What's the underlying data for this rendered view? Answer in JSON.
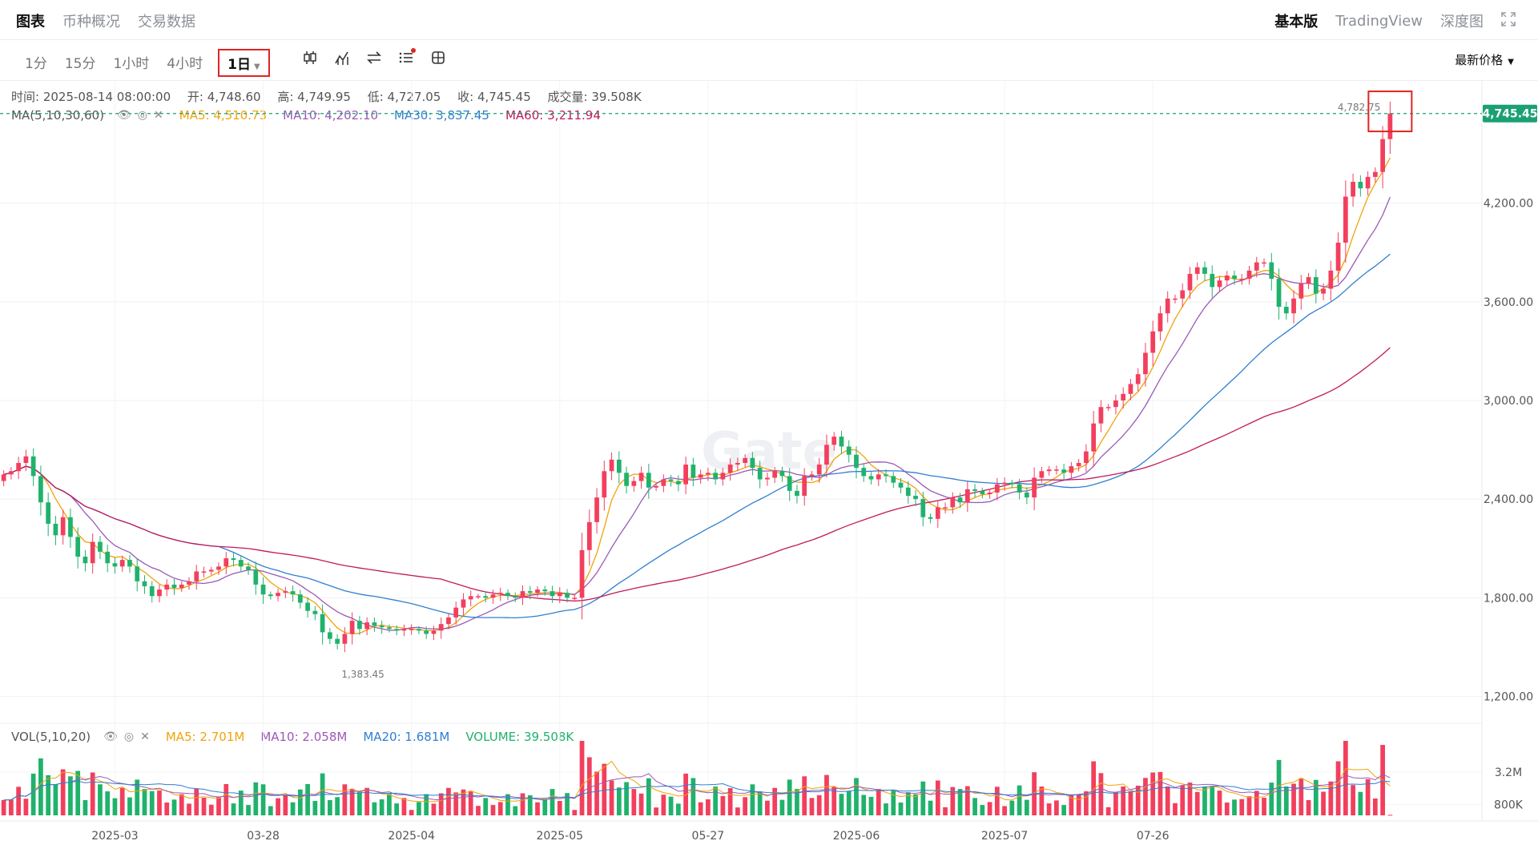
{
  "tabs": [
    {
      "label": "图表",
      "active": true
    },
    {
      "label": "币种概况",
      "active": false
    },
    {
      "label": "交易数据",
      "active": false
    }
  ],
  "top_right": {
    "basic": "基本版",
    "tradingview": "TradingView",
    "depth": "深度图",
    "expand_icon": "expand-icon"
  },
  "intervals": [
    "1分",
    "15分",
    "1小时",
    "4小时"
  ],
  "selected_interval": "1日",
  "tools": [
    "candle-type-icon",
    "indicator-icon",
    "compare-icon",
    "settings-list-icon",
    "layout-icon"
  ],
  "price_selector": "最新价格",
  "ohlc": {
    "time": "时间: 2025-08-14 08:00:00",
    "open": "开: 4,748.60",
    "high": "高: 4,749.95",
    "low": "低: 4,727.05",
    "close": "收: 4,745.45",
    "volume": "成交量: 39.508K"
  },
  "ma_legend": {
    "name": "MA(5,10,30,60)",
    "ma5": "MA5: 4,510.73",
    "ma10": "MA10: 4,202.10",
    "ma30": "MA30: 3,837.45",
    "ma60": "MA60: 3,211.94"
  },
  "vol_legend": {
    "name": "VOL(5,10,20)",
    "ma5": "MA5: 2.701M",
    "ma10": "MA10: 2.058M",
    "ma20": "MA20: 1.681M",
    "volume": "VOLUME: 39.508K"
  },
  "colors": {
    "up": "#f23f5d",
    "down": "#20b26c",
    "ma5": "#f0a30a",
    "ma10": "#9b59b6",
    "ma30": "#2f7fd0",
    "ma60": "#c2185b",
    "accent": "#e02424"
  },
  "chart_data": {
    "type": "candlestick",
    "price_axis": {
      "ticks": [
        "4,200.00",
        "3,600.00",
        "3,000.00",
        "2,400.00",
        "1,800.00",
        "1,200.00"
      ],
      "min": 1100,
      "max": 4900
    },
    "volume_axis": {
      "ticks": [
        "3.2M",
        "800K"
      ]
    },
    "date_ticks": [
      "2025-03",
      "03-28",
      "2025-04",
      "2025-05",
      "05-27",
      "2025-06",
      "2025-07",
      "07-26"
    ],
    "last_price": "4,745.45",
    "high_marker": "4,782.75",
    "low_marker": "1,383.45",
    "watermark": "Gate",
    "closes": [
      2550,
      2570,
      2620,
      2660,
      2540,
      2380,
      2250,
      2180,
      2290,
      2170,
      2050,
      2010,
      2140,
      2080,
      2010,
      1990,
      2030,
      1990,
      1900,
      1870,
      1810,
      1850,
      1880,
      1860,
      1880,
      1900,
      1960,
      1960,
      1970,
      1990,
      2040,
      2030,
      1990,
      1970,
      1880,
      1820,
      1810,
      1830,
      1840,
      1820,
      1770,
      1720,
      1700,
      1590,
      1550,
      1520,
      1580,
      1660,
      1610,
      1650,
      1630,
      1620,
      1610,
      1600,
      1610,
      1610,
      1600,
      1580,
      1600,
      1640,
      1680,
      1740,
      1790,
      1810,
      1810,
      1800,
      1820,
      1830,
      1810,
      1800,
      1840,
      1830,
      1850,
      1840,
      1810,
      1830,
      1800,
      1800,
      2090,
      2260,
      2410,
      2570,
      2640,
      2560,
      2480,
      2510,
      2560,
      2470,
      2480,
      2520,
      2510,
      2490,
      2610,
      2530,
      2550,
      2560,
      2520,
      2560,
      2610,
      2620,
      2650,
      2590,
      2520,
      2530,
      2570,
      2540,
      2450,
      2420,
      2540,
      2550,
      2610,
      2730,
      2780,
      2720,
      2670,
      2590,
      2540,
      2520,
      2550,
      2540,
      2500,
      2470,
      2420,
      2400,
      2290,
      2280,
      2350,
      2350,
      2410,
      2380,
      2460,
      2450,
      2430,
      2440,
      2490,
      2500,
      2490,
      2440,
      2410,
      2530,
      2570,
      2580,
      2580,
      2560,
      2600,
      2620,
      2690,
      2860,
      2960,
      2960,
      3000,
      3040,
      3100,
      3160,
      3290,
      3420,
      3530,
      3620,
      3620,
      3670,
      3770,
      3810,
      3770,
      3690,
      3730,
      3760,
      3740,
      3740,
      3790,
      3840,
      3840,
      3740,
      3570,
      3530,
      3620,
      3710,
      3750,
      3650,
      3680,
      3790,
      3960,
      4240,
      4330,
      4290,
      4360,
      4390,
      4590,
      4745
    ]
  }
}
